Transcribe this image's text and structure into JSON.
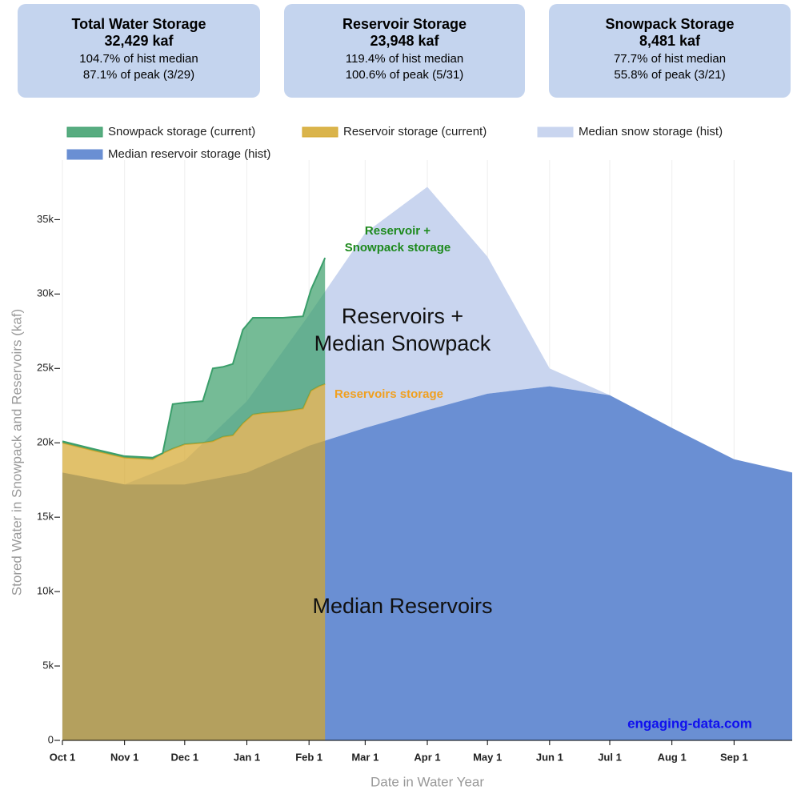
{
  "cards": [
    {
      "title": "Total Water Storage",
      "value": "32,429 kaf",
      "lines": [
        "104.7% of hist median",
        "87.1% of peak (3/29)"
      ]
    },
    {
      "title": "Reservoir Storage",
      "value": "23,948 kaf",
      "lines": [
        "119.4% of hist median",
        "100.6% of peak (5/31)"
      ]
    },
    {
      "title": "Snowpack Storage",
      "value": "8,481 kaf",
      "lines": [
        "77.7% of hist median",
        "55.8% of peak (3/21)"
      ]
    }
  ],
  "chart_data": {
    "type": "area",
    "xlabel": "Date in Water Year",
    "ylabel": "Stored Water in Snowpack and Reservoirs (kaf)",
    "xlim": [
      0,
      364
    ],
    "ylim": [
      0,
      39000
    ],
    "grid": true,
    "xticks": [
      {
        "value": 0,
        "label": "Oct 1"
      },
      {
        "value": 31,
        "label": "Nov 1"
      },
      {
        "value": 61,
        "label": "Dec 1"
      },
      {
        "value": 92,
        "label": "Jan 1"
      },
      {
        "value": 123,
        "label": "Feb 1"
      },
      {
        "value": 151,
        "label": "Mar 1"
      },
      {
        "value": 182,
        "label": "Apr 1"
      },
      {
        "value": 212,
        "label": "May 1"
      },
      {
        "value": 243,
        "label": "Jun 1"
      },
      {
        "value": 273,
        "label": "Jul 1"
      },
      {
        "value": 304,
        "label": "Aug 1"
      },
      {
        "value": 335,
        "label": "Sep 1"
      }
    ],
    "yticks": [
      0,
      {
        "value": 5000,
        "label": "5k"
      },
      {
        "value": 10000,
        "label": "10k"
      },
      {
        "value": 15000,
        "label": "15k"
      },
      {
        "value": 20000,
        "label": "20k"
      },
      {
        "value": 25000,
        "label": "25k"
      },
      {
        "value": 30000,
        "label": "30k"
      },
      {
        "value": 35000,
        "label": "35k"
      }
    ],
    "series": [
      {
        "name": "Snowpack storage (current)",
        "color": "#3a9e6a",
        "x": [
          0,
          15,
          31,
          45,
          50,
          55,
          61,
          70,
          75,
          80,
          85,
          90,
          95,
          100,
          110,
          120,
          124,
          128,
          131
        ],
        "values": [
          100,
          100,
          100,
          100,
          0,
          3000,
          2800,
          2800,
          4900,
          4700,
          4800,
          6300,
          6500,
          6400,
          6300,
          6200,
          6800,
          7700,
          8481
        ]
      },
      {
        "name": "Reservoir storage (current)",
        "color": "#d4a72c",
        "x": [
          0,
          15,
          31,
          45,
          50,
          55,
          61,
          70,
          75,
          80,
          85,
          90,
          95,
          100,
          110,
          120,
          124,
          128,
          131
        ],
        "values": [
          20000,
          19500,
          19000,
          18900,
          19300,
          19600,
          19900,
          20000,
          20100,
          20400,
          20500,
          21300,
          21900,
          22000,
          22100,
          22300,
          23500,
          23800,
          23948
        ]
      },
      {
        "name": "Median snow storage (hist)",
        "color": "#c9d5ef",
        "x": [
          0,
          31,
          61,
          92,
          123,
          151,
          182,
          212,
          243,
          273,
          304,
          335,
          364
        ],
        "values": [
          0,
          0,
          1600,
          4800,
          8800,
          13100,
          15000,
          9200,
          1200,
          0,
          0,
          0,
          0
        ]
      },
      {
        "name": "Median reservoir storage (hist)",
        "color": "#6a8fd3",
        "x": [
          0,
          31,
          61,
          92,
          123,
          151,
          182,
          212,
          243,
          273,
          304,
          335,
          364
        ],
        "values": [
          18000,
          17200,
          17200,
          18000,
          19800,
          21000,
          22200,
          23300,
          23800,
          23200,
          21000,
          18900,
          18000
        ]
      }
    ],
    "annotations": [
      {
        "text": [
          "Reservoir +",
          "Snowpack storage"
        ],
        "color": "#1e8a1e"
      },
      {
        "text": [
          "Reservoirs +",
          "Median Snowpack"
        ],
        "color": "#111111"
      },
      {
        "text": [
          "Reservoirs storage"
        ],
        "color": "#f0a020"
      },
      {
        "text": [
          "Median Reservoirs"
        ],
        "color": "#111111"
      },
      {
        "text": [
          "engaging-data.com"
        ],
        "color": "#1010ee"
      }
    ]
  }
}
